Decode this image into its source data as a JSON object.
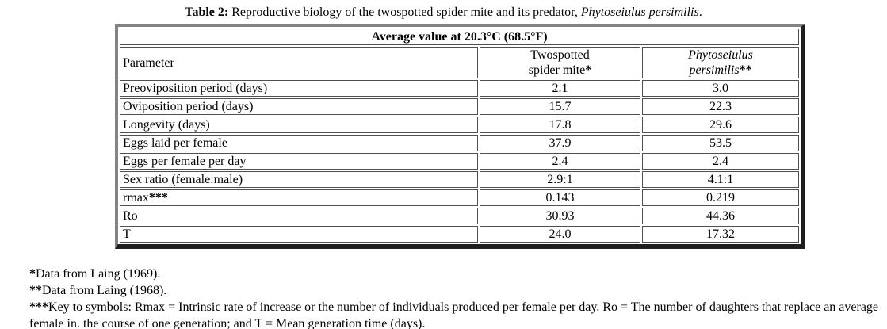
{
  "title": {
    "label": "Table 2:",
    "text": " Reproductive biology of the twospotted spider mite and its predator, ",
    "species": "Phytoseiulus persimilis",
    "period": "."
  },
  "table": {
    "header": "Average value at 20.3°C (68.5°F)",
    "columns": [
      {
        "label": "Parameter"
      },
      {
        "line1": "Twospotted",
        "line2": "spider mite",
        "stars": "*"
      },
      {
        "line1": "Phytoseiulus",
        "line2": "persimilis",
        "stars": "**"
      }
    ],
    "rows": [
      {
        "parameter": "Preoviposition period (days)",
        "stars": "",
        "mite": "2.1",
        "persimilis": "3.0"
      },
      {
        "parameter": "Oviposition period (days)",
        "stars": "",
        "mite": "15.7",
        "persimilis": "22.3"
      },
      {
        "parameter": "Longevity (days)",
        "stars": "",
        "mite": "17.8",
        "persimilis": "29.6"
      },
      {
        "parameter": "Eggs laid per female",
        "stars": "",
        "mite": "37.9",
        "persimilis": "53.5"
      },
      {
        "parameter": "Eggs per female per day",
        "stars": "",
        "mite": "2.4",
        "persimilis": "2.4"
      },
      {
        "parameter": "Sex ratio (female:male)",
        "stars": "",
        "mite": "2.9:1",
        "persimilis": "4.1:1"
      },
      {
        "parameter": "rmax",
        "stars": "***",
        "mite": "0.143",
        "persimilis": "0.219"
      },
      {
        "parameter": "Ro",
        "stars": "",
        "mite": "30.93",
        "persimilis": "44.36"
      },
      {
        "parameter": "T",
        "stars": "",
        "mite": "24.0",
        "persimilis": "17.32"
      }
    ]
  },
  "footnotes": [
    {
      "stars": "*",
      "text": "Data from Laing (1969)."
    },
    {
      "stars": "**",
      "text": "Data from Laing (1968)."
    },
    {
      "stars": "***",
      "text": "Key to symbols: Rmax = Intrinsic rate of increase or the number of individuals produced per female per day. Ro = The number of daughters that replace an average female in. the course of one generation; and T = Mean generation time (days)."
    }
  ],
  "colors": {
    "frame_light": "#838383",
    "frame_dark": "#1e1e1e",
    "cell_border": "#4f4f4f",
    "text": "#000000",
    "background": "#ffffff"
  }
}
